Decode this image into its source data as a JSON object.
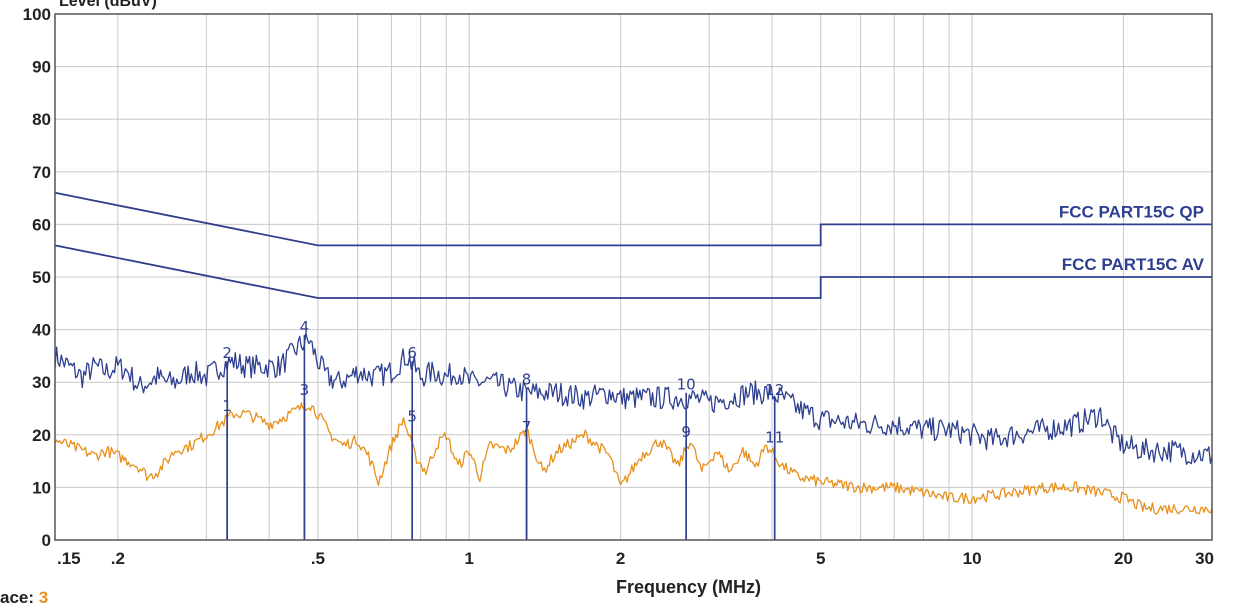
{
  "chart_data": {
    "type": "line",
    "x_scale": "log",
    "xlabel": "Frequency (MHz)",
    "ylabel_fragment": "Level (dBuV)",
    "xlim": [
      0.15,
      30
    ],
    "ylim": [
      0,
      100
    ],
    "x_ticks": [
      {
        "value": 0.15,
        "label": ".15"
      },
      {
        "value": 0.2,
        "label": ".2"
      },
      {
        "value": 0.5,
        "label": ".5"
      },
      {
        "value": 1,
        "label": "1"
      },
      {
        "value": 2,
        "label": "2"
      },
      {
        "value": 5,
        "label": "5"
      },
      {
        "value": 10,
        "label": "10"
      },
      {
        "value": 20,
        "label": "20"
      },
      {
        "value": 30,
        "label": "30"
      }
    ],
    "y_ticks": [
      0,
      10,
      20,
      30,
      40,
      50,
      60,
      70,
      80,
      90,
      100
    ],
    "grid": true,
    "colors": {
      "limit": "#2e3f8f",
      "qp_trace": "#2e3f8f",
      "av_trace": "#e8901c",
      "marker": "#2e3f8f",
      "grid": "#c8c8c8",
      "frame": "#555555"
    },
    "limits": [
      {
        "name": "FCC PART15C QP",
        "points": [
          [
            0.15,
            66
          ],
          [
            0.5,
            56
          ],
          [
            5,
            56
          ],
          [
            5,
            60
          ],
          [
            30,
            60
          ]
        ]
      },
      {
        "name": "FCC PART15C AV",
        "points": [
          [
            0.15,
            56
          ],
          [
            0.5,
            46
          ],
          [
            5,
            46
          ],
          [
            5,
            50
          ],
          [
            30,
            50
          ]
        ]
      }
    ],
    "series": [
      {
        "key": "qp",
        "points": [
          [
            0.15,
            35
          ],
          [
            0.16,
            33
          ],
          [
            0.17,
            31
          ],
          [
            0.18,
            33
          ],
          [
            0.19,
            32
          ],
          [
            0.2,
            33
          ],
          [
            0.21,
            32
          ],
          [
            0.22,
            29
          ],
          [
            0.23,
            30
          ],
          [
            0.24,
            31
          ],
          [
            0.25,
            30
          ],
          [
            0.26,
            30
          ],
          [
            0.27,
            31
          ],
          [
            0.28,
            32
          ],
          [
            0.3,
            31
          ],
          [
            0.32,
            33
          ],
          [
            0.34,
            34
          ],
          [
            0.36,
            33
          ],
          [
            0.38,
            33
          ],
          [
            0.4,
            33
          ],
          [
            0.42,
            33
          ],
          [
            0.44,
            35
          ],
          [
            0.46,
            37
          ],
          [
            0.48,
            38
          ],
          [
            0.5,
            34
          ],
          [
            0.52,
            31
          ],
          [
            0.55,
            30
          ],
          [
            0.58,
            31
          ],
          [
            0.6,
            32
          ],
          [
            0.65,
            31
          ],
          [
            0.7,
            32
          ],
          [
            0.75,
            35
          ],
          [
            0.8,
            31
          ],
          [
            0.85,
            32
          ],
          [
            0.9,
            31
          ],
          [
            0.95,
            32
          ],
          [
            1.0,
            30
          ],
          [
            1.1,
            30
          ],
          [
            1.2,
            29
          ],
          [
            1.3,
            28
          ],
          [
            1.4,
            28
          ],
          [
            1.5,
            28
          ],
          [
            1.7,
            27
          ],
          [
            1.9,
            28
          ],
          [
            2.0,
            27
          ],
          [
            2.2,
            27
          ],
          [
            2.4,
            27
          ],
          [
            2.6,
            27
          ],
          [
            2.8,
            27
          ],
          [
            3.0,
            26
          ],
          [
            3.3,
            27
          ],
          [
            3.6,
            28
          ],
          [
            3.9,
            28
          ],
          [
            4.2,
            27
          ],
          [
            4.5,
            25
          ],
          [
            5.0,
            23
          ],
          [
            6.0,
            22
          ],
          [
            7.0,
            22
          ],
          [
            8.0,
            21
          ],
          [
            9.0,
            21
          ],
          [
            10.0,
            20
          ],
          [
            11.0,
            19
          ],
          [
            12.0,
            20
          ],
          [
            14.0,
            21
          ],
          [
            16.0,
            22
          ],
          [
            17.0,
            23
          ],
          [
            18.0,
            24
          ],
          [
            19.0,
            20
          ],
          [
            20.0,
            18
          ],
          [
            22.0,
            17
          ],
          [
            25.0,
            17
          ],
          [
            30.0,
            16
          ]
        ]
      },
      {
        "key": "av",
        "points": [
          [
            0.15,
            19
          ],
          [
            0.16,
            18
          ],
          [
            0.17,
            17
          ],
          [
            0.18,
            16
          ],
          [
            0.19,
            17
          ],
          [
            0.2,
            16
          ],
          [
            0.21,
            15
          ],
          [
            0.22,
            14
          ],
          [
            0.23,
            12
          ],
          [
            0.24,
            13
          ],
          [
            0.25,
            15
          ],
          [
            0.26,
            17
          ],
          [
            0.28,
            18
          ],
          [
            0.3,
            20
          ],
          [
            0.32,
            22
          ],
          [
            0.34,
            24
          ],
          [
            0.36,
            24
          ],
          [
            0.38,
            23
          ],
          [
            0.4,
            22
          ],
          [
            0.42,
            23
          ],
          [
            0.44,
            24
          ],
          [
            0.46,
            25
          ],
          [
            0.48,
            26
          ],
          [
            0.5,
            24
          ],
          [
            0.53,
            20
          ],
          [
            0.56,
            18
          ],
          [
            0.6,
            19
          ],
          [
            0.63,
            16
          ],
          [
            0.66,
            11
          ],
          [
            0.7,
            18
          ],
          [
            0.74,
            23
          ],
          [
            0.78,
            16
          ],
          [
            0.82,
            13
          ],
          [
            0.86,
            18
          ],
          [
            0.9,
            20
          ],
          [
            0.95,
            14
          ],
          [
            1.0,
            17
          ],
          [
            1.05,
            12
          ],
          [
            1.1,
            18
          ],
          [
            1.2,
            17
          ],
          [
            1.3,
            21
          ],
          [
            1.4,
            13
          ],
          [
            1.5,
            17
          ],
          [
            1.7,
            20
          ],
          [
            1.9,
            16
          ],
          [
            2.0,
            10
          ],
          [
            2.2,
            16
          ],
          [
            2.4,
            19
          ],
          [
            2.6,
            14
          ],
          [
            2.75,
            19
          ],
          [
            2.9,
            13
          ],
          [
            3.1,
            17
          ],
          [
            3.3,
            13
          ],
          [
            3.5,
            17
          ],
          [
            3.7,
            14
          ],
          [
            3.9,
            18
          ],
          [
            4.2,
            14
          ],
          [
            4.5,
            12
          ],
          [
            5.0,
            11
          ],
          [
            6.0,
            10
          ],
          [
            7.0,
            10
          ],
          [
            8.0,
            9
          ],
          [
            9.0,
            8
          ],
          [
            10.0,
            8
          ],
          [
            12.0,
            9
          ],
          [
            14.0,
            10
          ],
          [
            16.0,
            10
          ],
          [
            18.0,
            9
          ],
          [
            20.0,
            8
          ],
          [
            22.0,
            6
          ],
          [
            25.0,
            6
          ],
          [
            30.0,
            6
          ]
        ]
      }
    ],
    "markers": [
      {
        "label": "1",
        "freq": 0.33,
        "level": 24
      },
      {
        "label": "2",
        "freq": 0.33,
        "level": 34
      },
      {
        "label": "3",
        "freq": 0.47,
        "level": 27
      },
      {
        "label": "4",
        "freq": 0.47,
        "level": 39
      },
      {
        "label": "5",
        "freq": 0.77,
        "level": 22
      },
      {
        "label": "6",
        "freq": 0.77,
        "level": 34
      },
      {
        "label": "7",
        "freq": 1.3,
        "level": 20
      },
      {
        "label": "8",
        "freq": 1.3,
        "level": 29
      },
      {
        "label": "9",
        "freq": 2.7,
        "level": 19
      },
      {
        "label": "10",
        "freq": 2.7,
        "level": 28
      },
      {
        "label": "11",
        "freq": 4.05,
        "level": 18
      },
      {
        "label": "12",
        "freq": 4.05,
        "level": 27
      }
    ],
    "trace_label": "ace:",
    "trace_value": "3"
  }
}
